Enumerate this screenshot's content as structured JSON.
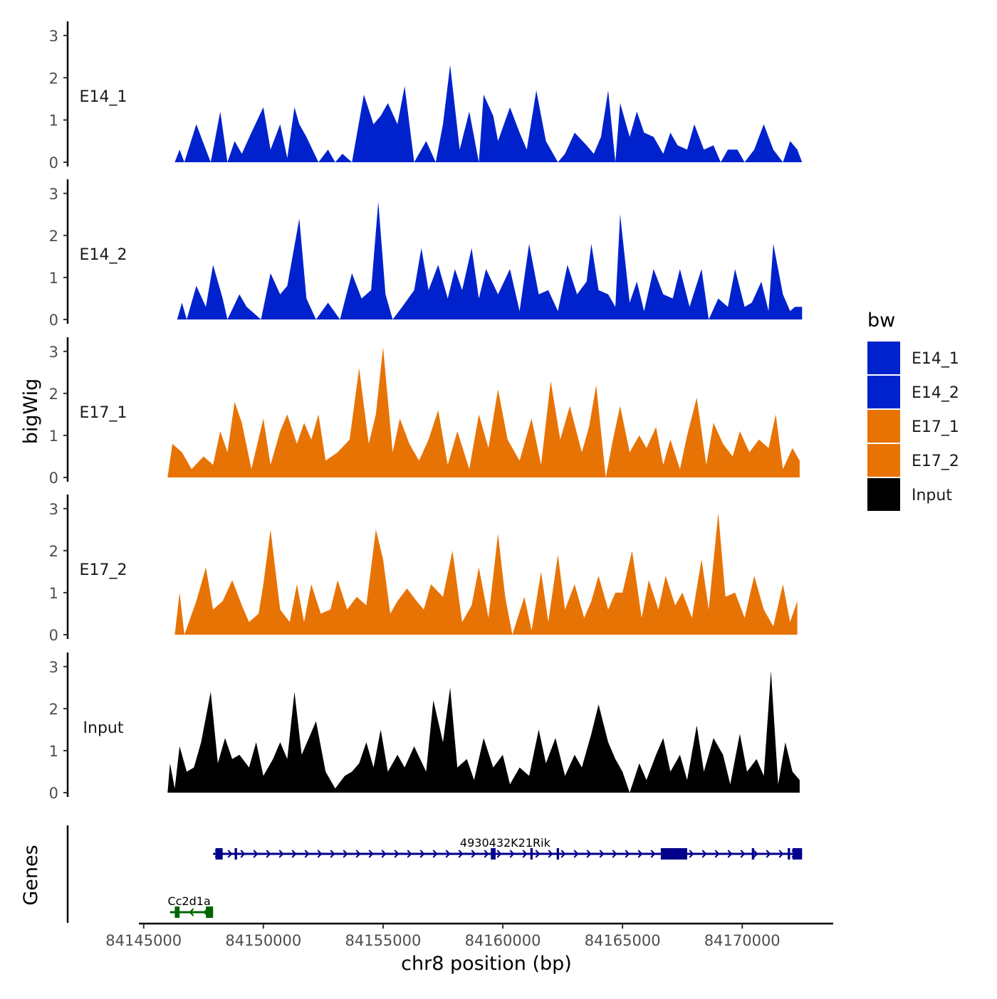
{
  "chart_data": {
    "type": "area",
    "title": "",
    "xlabel": "chr8 position (bp)",
    "ylabel": "bigWig",
    "genes_label": "Genes",
    "xlim": [
      84144800,
      84173800
    ],
    "x_ticks": [
      84145000,
      84150000,
      84155000,
      84160000,
      84165000,
      84170000
    ],
    "x_tick_labels": [
      "84145000",
      "84150000",
      "84155000",
      "84160000",
      "84165000",
      "84170000"
    ],
    "ylim": [
      0,
      3.2
    ],
    "y_ticks": [
      0,
      1,
      2,
      3
    ],
    "y_tick_labels": [
      "0",
      "1",
      "2",
      "3"
    ],
    "legend": {
      "title": "bw",
      "entries": [
        {
          "label": "E14_1",
          "color": "#0022cc"
        },
        {
          "label": "E14_2",
          "color": "#0022cc"
        },
        {
          "label": "E17_1",
          "color": "#e87305"
        },
        {
          "label": "E17_2",
          "color": "#e87305"
        },
        {
          "label": "Input",
          "color": "#000000"
        }
      ]
    },
    "tracks": [
      {
        "name": "E14_1",
        "color": "#0022cc",
        "x": [
          84146300,
          84146500,
          84146700,
          84147200,
          84147600,
          84147800,
          84148200,
          84148500,
          84148800,
          84149100,
          84149500,
          84150000,
          84150300,
          84150700,
          84151000,
          84151300,
          84151500,
          84151800,
          84152300,
          84152700,
          84153000,
          84153300,
          84153700,
          84154200,
          84154600,
          84154900,
          84155200,
          84155600,
          84155900,
          84156300,
          84156800,
          84157200,
          84157500,
          84157800,
          84158200,
          84158600,
          84159000,
          84159200,
          84159600,
          84159800,
          84160300,
          84160700,
          84161000,
          84161400,
          84161800,
          84162300,
          84162600,
          84163000,
          84163500,
          84163800,
          84164100,
          84164400,
          84164700,
          84164900,
          84165300,
          84165600,
          84165900,
          84166300,
          84166700,
          84167000,
          84167300,
          84167700,
          84168000,
          84168400,
          84168800,
          84169100,
          84169400,
          84169800,
          84170100,
          84170500,
          84170900,
          84171300,
          84171700,
          84172000,
          84172300,
          84172500
        ],
        "y": [
          0,
          0.3,
          0,
          0.9,
          0.3,
          0,
          1.2,
          0,
          0.5,
          0.2,
          0.7,
          1.3,
          0.3,
          0.9,
          0.1,
          1.3,
          0.9,
          0.6,
          0,
          0.3,
          0,
          0.2,
          0,
          1.6,
          0.9,
          1.1,
          1.4,
          0.9,
          1.8,
          0,
          0.5,
          0,
          0.9,
          2.3,
          0.3,
          1.2,
          0,
          1.6,
          1.1,
          0.5,
          1.3,
          0.7,
          0.3,
          1.7,
          0.5,
          0,
          0.2,
          0.7,
          0.4,
          0.2,
          0.6,
          1.7,
          0,
          1.4,
          0.6,
          1.2,
          0.7,
          0.6,
          0.2,
          0.7,
          0.4,
          0.3,
          0.9,
          0.3,
          0.4,
          0,
          0.3,
          0.3,
          0,
          0.3,
          0.9,
          0.3,
          0,
          0.5,
          0.3,
          0
        ]
      },
      {
        "name": "E14_2",
        "color": "#0022cc",
        "x": [
          84146400,
          84146600,
          84146800,
          84147200,
          84147600,
          84147900,
          84148300,
          84148500,
          84149000,
          84149300,
          84149900,
          84150300,
          84150700,
          84151000,
          84151500,
          84151800,
          84152200,
          84152700,
          84153200,
          84153700,
          84154100,
          84154500,
          84154800,
          84155100,
          84155400,
          84155800,
          84156300,
          84156600,
          84156900,
          84157300,
          84157700,
          84158000,
          84158300,
          84158700,
          84159000,
          84159300,
          84159800,
          84160300,
          84160700,
          84161100,
          84161500,
          84161900,
          84162300,
          84162700,
          84163100,
          84163500,
          84163700,
          84164000,
          84164400,
          84164700,
          84164900,
          84165300,
          84165600,
          84165900,
          84166300,
          84166700,
          84167100,
          84167400,
          84167800,
          84168300,
          84168600,
          84169000,
          84169400,
          84169700,
          84170100,
          84170400,
          84170800,
          84171100,
          84171300,
          84171700,
          84172000,
          84172200,
          84172500
        ],
        "y": [
          0,
          0.4,
          0,
          0.8,
          0.3,
          1.3,
          0.5,
          0,
          0.6,
          0.3,
          0,
          1.1,
          0.6,
          0.8,
          2.4,
          0.5,
          0,
          0.4,
          0,
          1.1,
          0.5,
          0.7,
          2.8,
          0.6,
          0,
          0.3,
          0.7,
          1.7,
          0.7,
          1.3,
          0.5,
          1.2,
          0.7,
          1.7,
          0.5,
          1.2,
          0.6,
          1.2,
          0.2,
          1.8,
          0.6,
          0.7,
          0.2,
          1.3,
          0.6,
          0.9,
          1.8,
          0.7,
          0.6,
          0.3,
          2.5,
          0.4,
          0.9,
          0.2,
          1.2,
          0.6,
          0.5,
          1.2,
          0.3,
          1.2,
          0,
          0.5,
          0.3,
          1.2,
          0.3,
          0.4,
          0.9,
          0.2,
          1.8,
          0.6,
          0.2,
          0.3,
          0.3
        ]
      },
      {
        "name": "E17_1",
        "color": "#e87305",
        "x": [
          84146000,
          84146200,
          84146600,
          84147000,
          84147500,
          84147900,
          84148200,
          84148500,
          84148800,
          84149100,
          84149500,
          84150000,
          84150300,
          84150700,
          84151000,
          84151400,
          84151700,
          84152000,
          84152300,
          84152600,
          84153100,
          84153600,
          84154000,
          84154400,
          84154700,
          84155000,
          84155400,
          84155700,
          84156100,
          84156500,
          84156900,
          84157300,
          84157700,
          84158100,
          84158600,
          84159000,
          84159400,
          84159800,
          84160200,
          84160700,
          84161200,
          84161600,
          84162000,
          84162400,
          84162800,
          84163300,
          84163600,
          84163900,
          84164300,
          84164600,
          84164900,
          84165300,
          84165700,
          84166000,
          84166400,
          84166700,
          84167000,
          84167400,
          84167700,
          84168100,
          84168500,
          84168800,
          84169200,
          84169600,
          84169900,
          84170300,
          84170700,
          84171100,
          84171400,
          84171700,
          84172100,
          84172400
        ],
        "y": [
          0,
          0.8,
          0.6,
          0.2,
          0.5,
          0.3,
          1.1,
          0.6,
          1.8,
          1.3,
          0.2,
          1.4,
          0.3,
          1.1,
          1.5,
          0.8,
          1.3,
          0.9,
          1.5,
          0.4,
          0.6,
          0.9,
          2.6,
          0.8,
          1.5,
          3.1,
          0.6,
          1.4,
          0.8,
          0.4,
          0.9,
          1.6,
          0.3,
          1.1,
          0.2,
          1.5,
          0.7,
          2.1,
          0.9,
          0.4,
          1.4,
          0.3,
          2.3,
          0.9,
          1.7,
          0.6,
          1.2,
          2.2,
          0,
          0.9,
          1.7,
          0.6,
          1.0,
          0.7,
          1.2,
          0.3,
          0.9,
          0.2,
          1.0,
          1.9,
          0.3,
          1.3,
          0.8,
          0.5,
          1.1,
          0.6,
          0.9,
          0.7,
          1.5,
          0.2,
          0.7,
          0.4
        ]
      },
      {
        "name": "E17_2",
        "color": "#e87305",
        "x": [
          84146300,
          84146500,
          84146700,
          84147200,
          84147600,
          84147900,
          84148300,
          84148700,
          84149100,
          84149400,
          84149800,
          84150000,
          84150300,
          84150700,
          84151100,
          84151400,
          84151700,
          84152000,
          84152400,
          84152800,
          84153100,
          84153500,
          84153900,
          84154300,
          84154700,
          84155000,
          84155300,
          84155600,
          84156000,
          84156400,
          84156700,
          84157000,
          84157500,
          84157900,
          84158300,
          84158700,
          84159000,
          84159400,
          84159800,
          84160100,
          84160400,
          84160900,
          84161200,
          84161600,
          84161900,
          84162300,
          84162600,
          84163000,
          84163400,
          84163700,
          84164000,
          84164400,
          84164700,
          84165000,
          84165400,
          84165800,
          84166100,
          84166500,
          84166800,
          84167200,
          84167500,
          84167900,
          84168300,
          84168600,
          84169000,
          84169300,
          84169700,
          84170100,
          84170500,
          84170900,
          84171300,
          84171700,
          84172000,
          84172300
        ],
        "y": [
          0,
          1.0,
          0,
          0.8,
          1.6,
          0.6,
          0.8,
          1.3,
          0.7,
          0.3,
          0.5,
          1.2,
          2.5,
          0.6,
          0.3,
          1.2,
          0.3,
          1.2,
          0.5,
          0.6,
          1.3,
          0.6,
          0.9,
          0.7,
          2.5,
          1.8,
          0.5,
          0.8,
          1.1,
          0.8,
          0.6,
          1.2,
          0.9,
          2.0,
          0.3,
          0.7,
          1.6,
          0.4,
          2.4,
          0.9,
          0,
          0.9,
          0.1,
          1.5,
          0.3,
          1.9,
          0.6,
          1.2,
          0.4,
          0.8,
          1.4,
          0.6,
          1.0,
          1.0,
          2.0,
          0.4,
          1.3,
          0.6,
          1.4,
          0.7,
          1.0,
          0.4,
          1.8,
          0.6,
          2.9,
          0.9,
          1.0,
          0.4,
          1.4,
          0.6,
          0.2,
          1.2,
          0.3,
          0.8
        ]
      },
      {
        "name": "Input",
        "color": "#000000",
        "x": [
          84146000,
          84146100,
          84146300,
          84146500,
          84146800,
          84147100,
          84147400,
          84147800,
          84148100,
          84148400,
          84148700,
          84149000,
          84149400,
          84149700,
          84150000,
          84150400,
          84150700,
          84151000,
          84151300,
          84151600,
          84151900,
          84152200,
          84152600,
          84153000,
          84153400,
          84153700,
          84154000,
          84154300,
          84154600,
          84154900,
          84155200,
          84155600,
          84155900,
          84156300,
          84156800,
          84157100,
          84157500,
          84157800,
          84158100,
          84158500,
          84158800,
          84159200,
          84159600,
          84160000,
          84160300,
          84160700,
          84161100,
          84161500,
          84161800,
          84162200,
          84162600,
          84163000,
          84163300,
          84163700,
          84164000,
          84164400,
          84164700,
          84165000,
          84165300,
          84165700,
          84166000,
          84166400,
          84166700,
          84167000,
          84167400,
          84167700,
          84168100,
          84168400,
          84168800,
          84169200,
          84169500,
          84169900,
          84170200,
          84170600,
          84170900,
          84171200,
          84171500,
          84171800,
          84172100,
          84172400
        ],
        "y": [
          0,
          0.7,
          0.1,
          1.1,
          0.5,
          0.6,
          1.2,
          2.4,
          0.7,
          1.3,
          0.8,
          0.9,
          0.6,
          1.2,
          0.4,
          0.8,
          1.2,
          0.8,
          2.4,
          0.9,
          1.3,
          1.7,
          0.5,
          0.1,
          0.4,
          0.5,
          0.7,
          1.2,
          0.6,
          1.5,
          0.5,
          0.9,
          0.6,
          1.1,
          0.5,
          2.2,
          1.2,
          2.5,
          0.6,
          0.8,
          0.3,
          1.3,
          0.6,
          0.9,
          0.2,
          0.6,
          0.4,
          1.5,
          0.7,
          1.3,
          0.4,
          0.9,
          0.6,
          1.4,
          2.1,
          1.2,
          0.8,
          0.5,
          0,
          0.7,
          0.3,
          0.9,
          1.3,
          0.5,
          0.9,
          0.3,
          1.6,
          0.5,
          1.3,
          0.9,
          0.2,
          1.4,
          0.5,
          0.8,
          0.4,
          2.9,
          0.2,
          1.2,
          0.5,
          0.3
        ]
      }
    ],
    "genes": [
      {
        "name": "4930432K21Rik",
        "color": "#00008b",
        "strand": "+",
        "row": 1,
        "start": 84147900,
        "end": 84172500,
        "exons": [
          [
            84148000,
            84148300
          ],
          [
            84148800,
            84148900
          ],
          [
            84159500,
            84159700
          ],
          [
            84161150,
            84161250
          ],
          [
            84162250,
            84162350
          ],
          [
            84166600,
            84167700
          ],
          [
            84170400,
            84170500
          ],
          [
            84171900,
            84172000
          ],
          [
            84172100,
            84172500
          ]
        ]
      },
      {
        "name": "Cc2d1a",
        "color": "#006400",
        "strand": "-",
        "row": 2,
        "start": 84146100,
        "end": 84147900,
        "exons": [
          [
            84146300,
            84146500
          ],
          [
            84147600,
            84147900
          ]
        ]
      }
    ]
  }
}
